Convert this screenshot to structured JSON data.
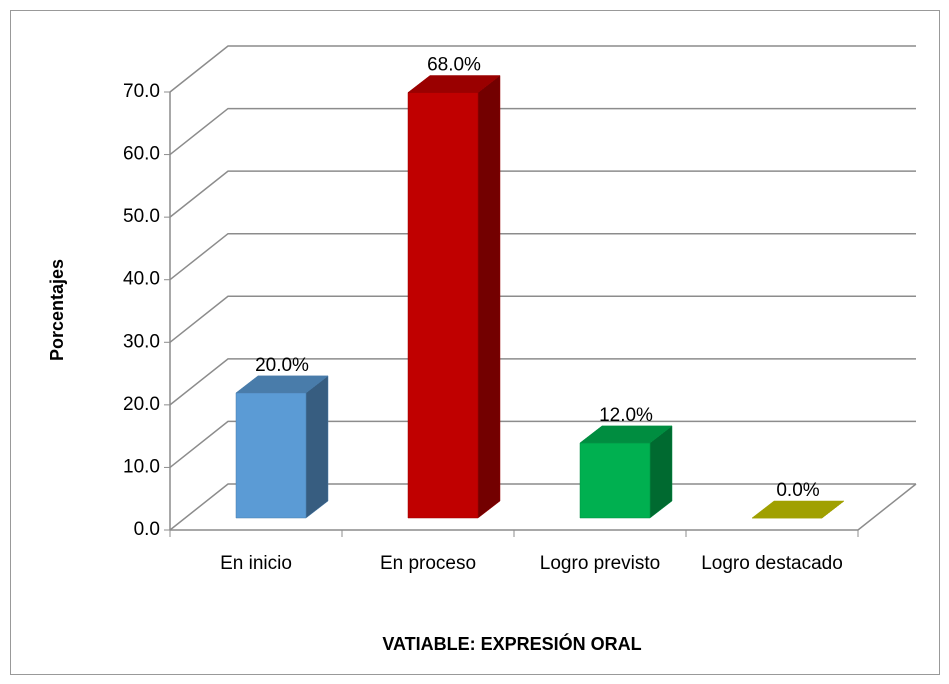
{
  "chart_data": {
    "type": "bar3d",
    "xlabel": "VATIABLE: EXPRESIÓN ORAL",
    "ylabel": "Porcentajes",
    "categories": [
      "En inicio",
      "En proceso",
      "Logro previsto",
      "Logro destacado"
    ],
    "values": [
      20,
      68,
      12,
      0
    ],
    "value_labels": [
      "20.0%",
      "68.0%",
      "12.0%",
      "0.0%"
    ],
    "colors": [
      "#5b9bd5",
      "#c00000",
      "#00b050",
      "#c8c800"
    ],
    "ylim": [
      0,
      70
    ],
    "yticks": [
      {
        "value": 0,
        "label": "0.0"
      },
      {
        "value": 10,
        "label": "10.0"
      },
      {
        "value": 20,
        "label": "20.0"
      },
      {
        "value": 30,
        "label": "30.0"
      },
      {
        "value": 40,
        "label": "40.0"
      },
      {
        "value": 50,
        "label": "50.0"
      },
      {
        "value": 60,
        "label": "60.0"
      },
      {
        "value": 70,
        "label": "70.0"
      }
    ],
    "grid": true
  }
}
